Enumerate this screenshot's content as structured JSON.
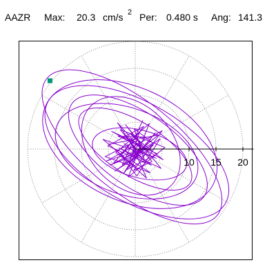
{
  "header": {
    "station": "AAZR",
    "max_label": "Max:",
    "max_value": "20.3",
    "max_unit": "cm/s",
    "max_exp": "2",
    "per_label": "Per:",
    "per_value": "0.480 s",
    "ang_label": "Ang:",
    "ang_value": "141.3"
  },
  "chart_data": {
    "type": "scatter",
    "title": "",
    "xlabel": "",
    "ylabel": "",
    "radial_axis": {
      "tick_values": [
        10,
        15,
        20
      ],
      "tick_labels": [
        "10",
        "15",
        "20"
      ],
      "max": 22
    },
    "ring_radii": [
      5,
      10,
      15,
      20
    ],
    "spoke_angles_deg": [
      0,
      30,
      60,
      90,
      120,
      150,
      180,
      210,
      240,
      270,
      300,
      330
    ],
    "grid": true,
    "max_amplitude": 20.3,
    "peak_angle_deg": 141.3,
    "peak_marker": {
      "angle_deg": 141.3,
      "radius": 20.3,
      "color": "#009977"
    },
    "orbit_loops": [
      {
        "a": 20.3,
        "b": 8.5,
        "angle_deg": 141.3,
        "cx": -0.6,
        "cy": 0.4
      },
      {
        "a": 19.0,
        "b": 9.2,
        "angle_deg": 150,
        "cx": 0.3,
        "cy": -0.6
      },
      {
        "a": 17.2,
        "b": 10.5,
        "angle_deg": 155,
        "cx": -1.0,
        "cy": 0.9
      },
      {
        "a": 15.0,
        "b": 6.8,
        "angle_deg": 145,
        "cx": 0.5,
        "cy": -0.2
      },
      {
        "a": 13.8,
        "b": 8.0,
        "angle_deg": 160,
        "cx": -1.6,
        "cy": -0.4
      },
      {
        "a": 12.0,
        "b": 5.0,
        "angle_deg": 148,
        "cx": 0.0,
        "cy": 0.0
      },
      {
        "a": 10.5,
        "b": 7.6,
        "angle_deg": 135,
        "cx": -0.8,
        "cy": 0.6
      },
      {
        "a": 9.0,
        "b": 4.4,
        "angle_deg": 165,
        "cx": 0.8,
        "cy": -0.9
      }
    ],
    "scribble_points": [
      [
        -2.1,
        1.0
      ],
      [
        1.2,
        -1.5
      ],
      [
        3.4,
        0.8
      ],
      [
        -4.0,
        -2.6
      ],
      [
        0.8,
        3.1
      ],
      [
        -1.5,
        -3.8
      ],
      [
        4.1,
        -0.9
      ],
      [
        -3.2,
        2.4
      ],
      [
        2.0,
        2.2
      ],
      [
        -0.5,
        -0.4
      ],
      [
        3.0,
        -3.0
      ],
      [
        -5.1,
        0.6
      ],
      [
        1.6,
        4.2
      ],
      [
        -2.6,
        -1.2
      ],
      [
        0.3,
        -5.0
      ],
      [
        4.6,
        1.9
      ],
      [
        -3.8,
        -4.1
      ],
      [
        2.3,
        -0.2
      ],
      [
        -1.0,
        2.9
      ],
      [
        5.2,
        -2.0
      ],
      [
        -4.4,
        3.3
      ],
      [
        1.1,
        0.7
      ],
      [
        -2.2,
        -4.6
      ],
      [
        3.7,
        3.0
      ],
      [
        -0.6,
        -2.2
      ],
      [
        2.8,
        -4.4
      ],
      [
        -5.6,
        -1.4
      ],
      [
        0.4,
        1.6
      ],
      [
        -1.8,
        4.5
      ],
      [
        4.8,
        -3.6
      ],
      [
        -3.0,
        0.2
      ],
      [
        1.9,
        -2.6
      ],
      [
        -0.2,
        3.8
      ],
      [
        3.3,
        1.1
      ],
      [
        -4.7,
        -3.0
      ],
      [
        0.9,
        -0.8
      ],
      [
        -2.8,
        3.6
      ],
      [
        5.5,
        0.3
      ],
      [
        -1.3,
        -5.2
      ],
      [
        2.6,
        4.7
      ],
      [
        -3.6,
        -0.7
      ],
      [
        0.1,
        -3.3
      ],
      [
        -6.0,
        1.8
      ],
      [
        3.9,
        -1.7
      ],
      [
        -0.9,
        0.4
      ],
      [
        1.4,
        5.3
      ],
      [
        -2.4,
        -2.9
      ],
      [
        4.3,
        2.6
      ],
      [
        -4.9,
        0.9
      ],
      [
        2.1,
        -5.4
      ],
      [
        -1.1,
        1.9
      ],
      [
        0.6,
        -1.1
      ],
      [
        -3.3,
        4.9
      ],
      [
        3.1,
        -2.3
      ],
      [
        -0.3,
        -4.0
      ],
      [
        5.0,
        3.4
      ],
      [
        -5.3,
        -2.2
      ],
      [
        1.7,
        0.1
      ],
      [
        -2.0,
        2.6
      ],
      [
        0.0,
        0.0
      ]
    ]
  }
}
